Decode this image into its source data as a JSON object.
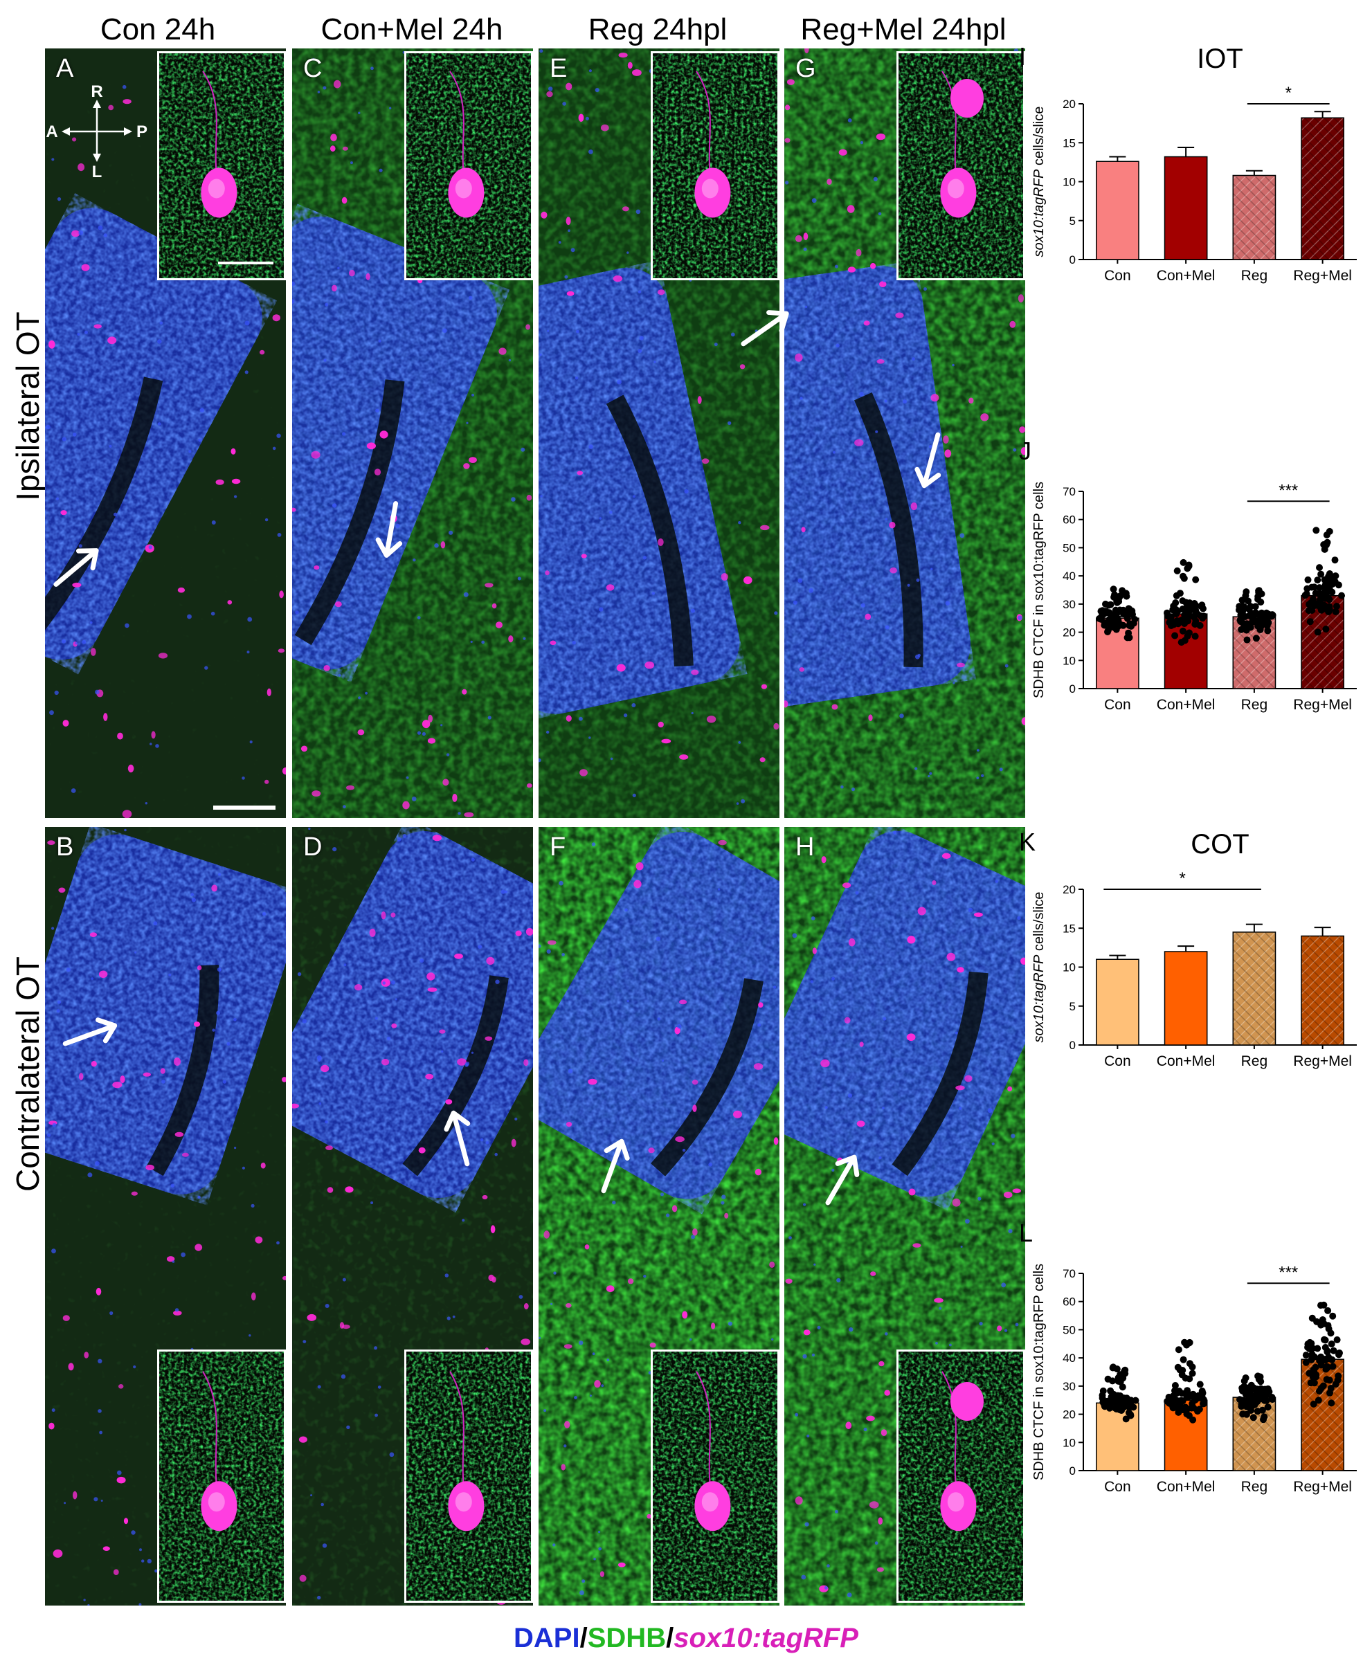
{
  "columns": [
    {
      "title": "Con 24h",
      "cx": 228
    },
    {
      "title": "Con+Mel 24h",
      "cx": 595
    },
    {
      "title": "Reg 24hpl",
      "cx": 950
    },
    {
      "title": "Reg+Mel 24hpl",
      "cx": 1305
    }
  ],
  "rows": [
    {
      "title": "Ipsilateral OT"
    },
    {
      "title": "Contralateral OT"
    }
  ],
  "panels": [
    {
      "label": "A",
      "col": 0,
      "row": 0,
      "tissue_angle": 28,
      "green": 0.12,
      "insetPos": "top"
    },
    {
      "label": "C",
      "col": 1,
      "row": 0,
      "tissue_angle": 22,
      "green": 0.55,
      "insetPos": "top"
    },
    {
      "label": "E",
      "col": 2,
      "row": 0,
      "tissue_angle": -12,
      "green": 0.45,
      "insetPos": "top"
    },
    {
      "label": "G",
      "col": 3,
      "row": 0,
      "tissue_angle": -8,
      "green": 0.7,
      "insetPos": "top"
    },
    {
      "label": "B",
      "col": 0,
      "row": 1,
      "tissue_angle": 18,
      "green": 0.15,
      "insetPos": "bottom"
    },
    {
      "label": "D",
      "col": 1,
      "row": 1,
      "tissue_angle": 28,
      "green": 0.25,
      "insetPos": "bottom"
    },
    {
      "label": "F",
      "col": 2,
      "row": 1,
      "tissue_angle": 30,
      "green": 0.85,
      "insetPos": "bottom"
    },
    {
      "label": "H",
      "col": 3,
      "row": 1,
      "tissue_angle": 25,
      "green": 0.8,
      "insetPos": "bottom"
    }
  ],
  "compass": {
    "top": "R",
    "bottom": "L",
    "left": "A",
    "right": "P"
  },
  "legend": {
    "dapi": "DAPI",
    "slash1": "/",
    "sdhb": "SDHB",
    "slash2": "/",
    "sox10": "sox10:tagRFP",
    "colors": {
      "dapi": "#1a2fd6",
      "sdhb": "#22b822",
      "sox10": "#d81fb8"
    }
  },
  "chart_data": [
    {
      "panel": "I",
      "title": "IOT",
      "type": "bar",
      "categories": [
        "Con",
        "Con+Mel",
        "Reg",
        "Reg+Mel"
      ],
      "values": [
        12.6,
        13.2,
        10.8,
        18.2
      ],
      "errors": [
        0.6,
        1.2,
        0.6,
        0.8
      ],
      "ylabel": "sox10:tagRFP cells/slice",
      "ylim": [
        0,
        20
      ],
      "yticks": [
        0,
        5,
        10,
        15,
        20
      ],
      "colors": [
        "#f98080",
        "#a20000",
        "#cf6b6b",
        "#6a0000"
      ],
      "patterned": [
        false,
        false,
        true,
        true
      ],
      "significance": [
        {
          "from": 2,
          "to": 3,
          "label": "*"
        }
      ]
    },
    {
      "panel": "J",
      "title": "",
      "type": "bar",
      "categories": [
        "Con",
        "Con+Mel",
        "Reg",
        "Reg+Mel"
      ],
      "values": [
        25,
        26.5,
        25.5,
        33
      ],
      "errors": [
        0.6,
        0.8,
        0.6,
        0.9
      ],
      "ylabel": "SDHB CTCF in sox10:tagRFP cells",
      "ylim": [
        0,
        70
      ],
      "yticks": [
        0,
        10,
        20,
        30,
        40,
        50,
        60,
        70
      ],
      "colors": [
        "#f98080",
        "#a20000",
        "#cf6b6b",
        "#6a0000"
      ],
      "patterned": [
        false,
        false,
        true,
        true
      ],
      "points": {
        "ranges": [
          [
            18,
            36
          ],
          [
            16,
            46
          ],
          [
            17,
            35
          ],
          [
            20,
            57
          ]
        ],
        "count": 70
      },
      "significance": [
        {
          "from": 2,
          "to": 3,
          "label": "***"
        }
      ]
    },
    {
      "panel": "K",
      "title": "COT",
      "type": "bar",
      "categories": [
        "Con",
        "Con+Mel",
        "Reg",
        "Reg+Mel"
      ],
      "values": [
        11,
        12,
        14.5,
        14
      ],
      "errors": [
        0.5,
        0.7,
        1.0,
        1.1
      ],
      "ylabel": "sox10:tagRFP cells/slice",
      "ylim": [
        0,
        20
      ],
      "yticks": [
        0,
        5,
        10,
        15,
        20
      ],
      "colors": [
        "#ffc078",
        "#ff6000",
        "#d09450",
        "#b84a00"
      ],
      "patterned": [
        false,
        false,
        true,
        true
      ],
      "significance": [
        {
          "from": 0,
          "to": 2,
          "label": "*"
        }
      ]
    },
    {
      "panel": "L",
      "title": "",
      "type": "bar",
      "categories": [
        "Con",
        "Con+Mel",
        "Reg",
        "Reg+Mel"
      ],
      "values": [
        24,
        25,
        26,
        39.5
      ],
      "errors": [
        0.5,
        0.6,
        0.5,
        1.0
      ],
      "ylabel": "SDHB CTCF in sox10:tagRFP cells",
      "ylim": [
        0,
        70
      ],
      "yticks": [
        0,
        10,
        20,
        30,
        40,
        50,
        60,
        70
      ],
      "colors": [
        "#ffc078",
        "#ff6000",
        "#d09450",
        "#b84a00"
      ],
      "patterned": [
        false,
        false,
        true,
        true
      ],
      "points": {
        "ranges": [
          [
            18,
            37
          ],
          [
            17,
            46
          ],
          [
            18,
            34
          ],
          [
            22,
            60
          ]
        ],
        "count": 70
      },
      "significance": [
        {
          "from": 2,
          "to": 3,
          "label": "***"
        }
      ]
    }
  ]
}
